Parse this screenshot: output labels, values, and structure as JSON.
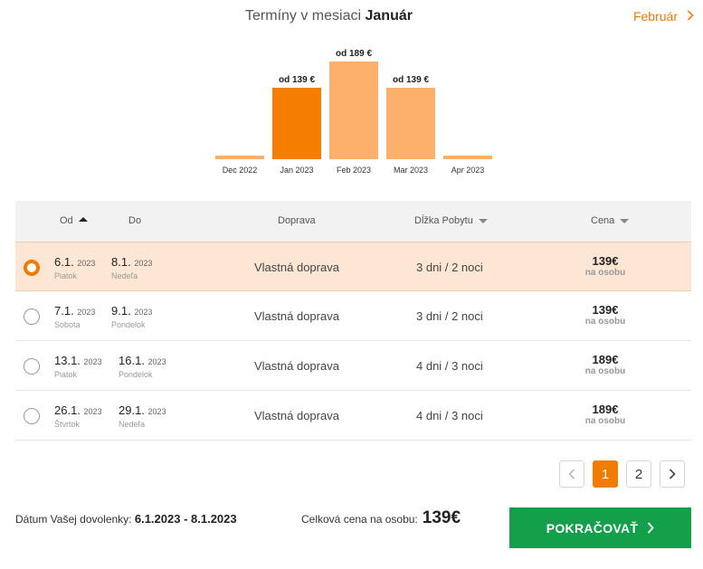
{
  "header": {
    "title_prefix": "Termíny v mesiaci",
    "title_month": "Január",
    "next_month_label": "Február",
    "next_icon": "chevron-right-icon"
  },
  "chart_data": {
    "type": "bar",
    "categories": [
      "Dec 2022",
      "Jan 2023",
      "Feb 2023",
      "Mar 2023",
      "Apr 2023"
    ],
    "values": [
      0,
      139,
      189,
      139,
      0
    ],
    "labels": [
      "",
      "od 139 €",
      "od 189 €",
      "od 139 €",
      ""
    ],
    "selected_index": 1,
    "colors": {
      "selected": "#f57d00",
      "normal": "#fdb06b"
    }
  },
  "table": {
    "headers": {
      "from": "Od",
      "to": "Do",
      "transport": "Doprava",
      "length": "Dĺžka Pobytu",
      "price": "Cena"
    },
    "rows": [
      {
        "from_date": "6.1.",
        "from_year": "2023",
        "from_day": "Piatok",
        "to_date": "8.1.",
        "to_year": "2023",
        "to_day": "Nedeľa",
        "transport": "Vlastná doprava",
        "days": "3 dni",
        "sep": "/",
        "nights": "2 noci",
        "price": "139€",
        "per": "na osobu",
        "selected": true
      },
      {
        "from_date": "7.1.",
        "from_year": "2023",
        "from_day": "Sobota",
        "to_date": "9.1.",
        "to_year": "2023",
        "to_day": "Pondelok",
        "transport": "Vlastná doprava",
        "days": "3 dni",
        "sep": "/",
        "nights": "2 noci",
        "price": "139€",
        "per": "na osobu",
        "selected": false
      },
      {
        "from_date": "13.1.",
        "from_year": "2023",
        "from_day": "Piatok",
        "to_date": "16.1.",
        "to_year": "2023",
        "to_day": "Pondelok",
        "transport": "Vlastná doprava",
        "days": "4 dni",
        "sep": "/",
        "nights": "3 noci",
        "price": "189€",
        "per": "na osobu",
        "selected": false
      },
      {
        "from_date": "26.1.",
        "from_year": "2023",
        "from_day": "Štvrtok",
        "to_date": "29.1.",
        "to_year": "2023",
        "to_day": "Nedeľa",
        "transport": "Vlastná doprava",
        "days": "4 dni",
        "sep": "/",
        "nights": "3 noci",
        "price": "189€",
        "per": "na osobu",
        "selected": false
      }
    ]
  },
  "pagination": {
    "prev_icon": "chevron-left-icon",
    "pages": [
      "1",
      "2"
    ],
    "current": "1",
    "next_icon": "chevron-right-icon"
  },
  "footer": {
    "dates_label": "Dátum Vašej dovolenky:",
    "dates_value": "6.1.2023 - 8.1.2023",
    "total_label": "Celková cena na osobu:",
    "total_value": "139€",
    "cta_label": "POKRAČOVAŤ"
  }
}
